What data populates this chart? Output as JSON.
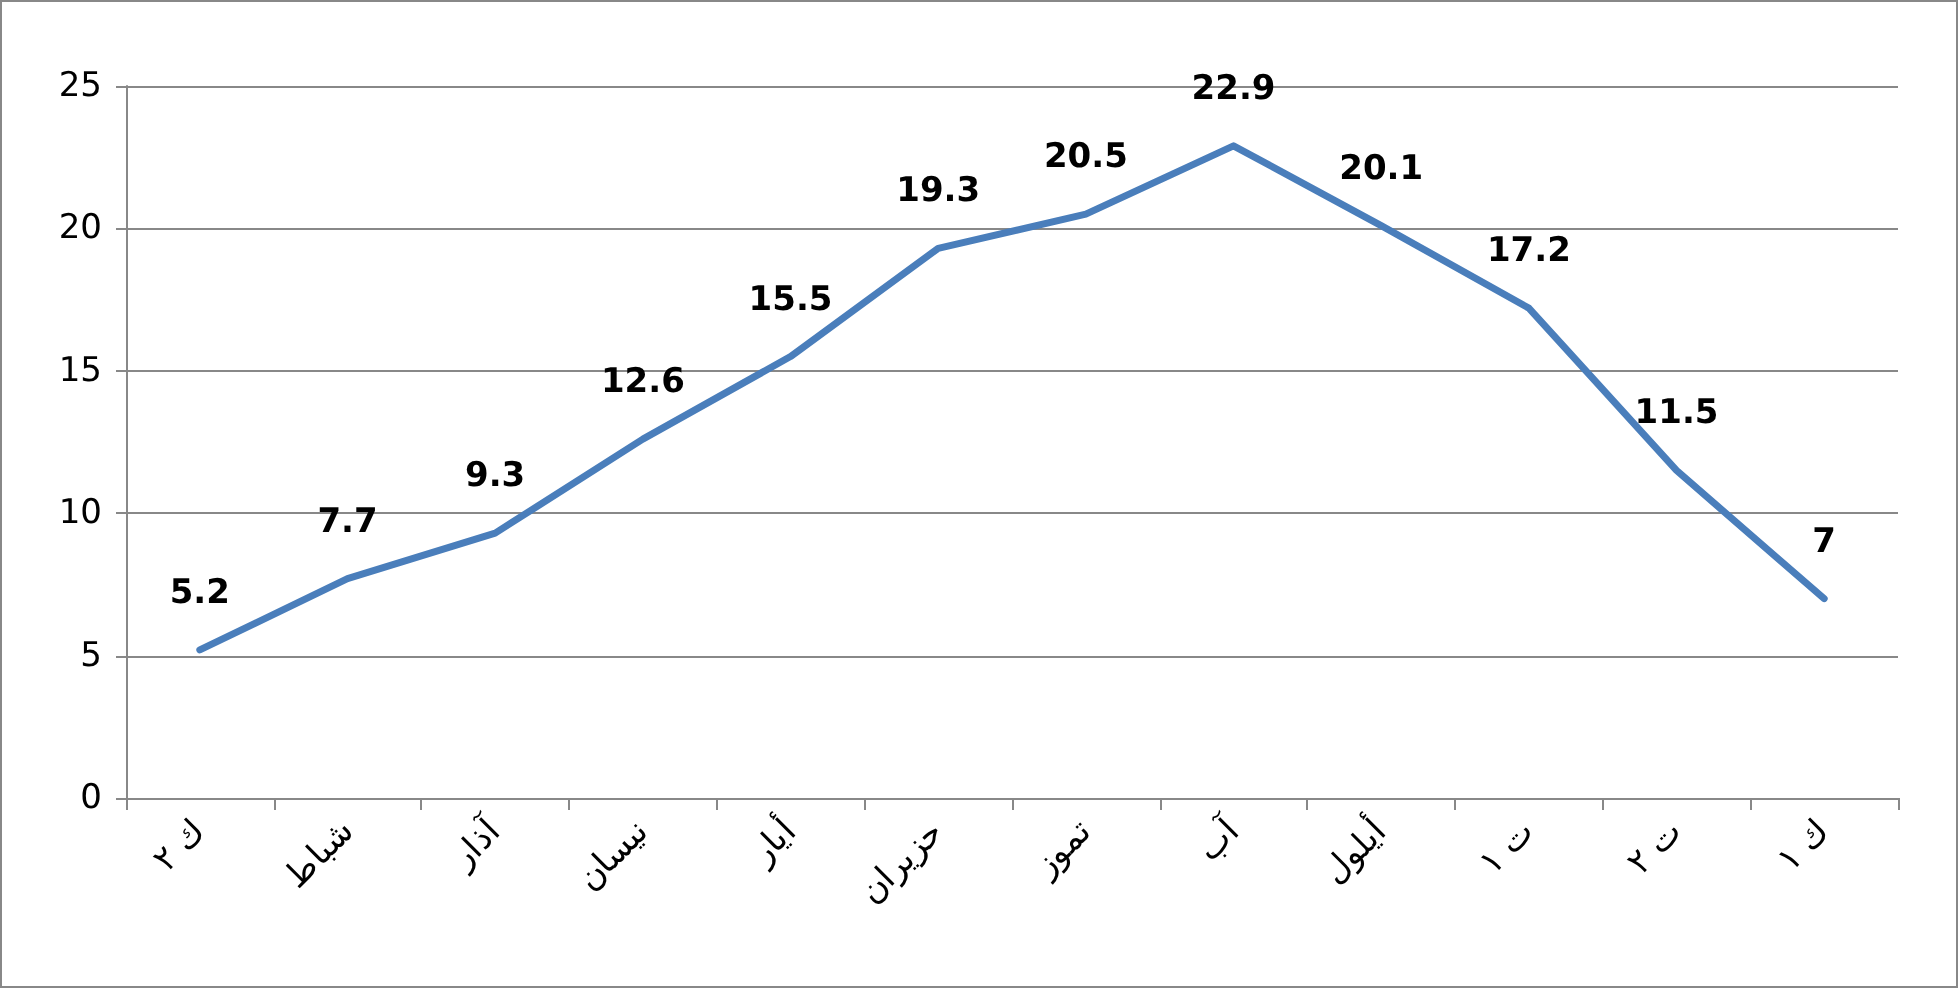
{
  "chart_data": {
    "type": "line",
    "categories": [
      "ك ٢",
      "شباط",
      "آذار",
      "نيسان",
      "أيار",
      "حزيران",
      "تموز",
      "آب",
      "أيلول",
      "ت ١",
      "ت ٢",
      "ك ١"
    ],
    "series": [
      {
        "color": "#4a7ebb",
        "values": [
          5.2,
          7.7,
          9.3,
          12.6,
          15.5,
          19.3,
          20.5,
          22.9,
          20.1,
          17.2,
          11.5,
          7
        ]
      }
    ],
    "ylim": [
      0,
      25
    ],
    "yticks": [
      0,
      5,
      10,
      15,
      20,
      25
    ],
    "grid": "y",
    "marker": "none",
    "line_style": "solid",
    "data_labels": true
  }
}
